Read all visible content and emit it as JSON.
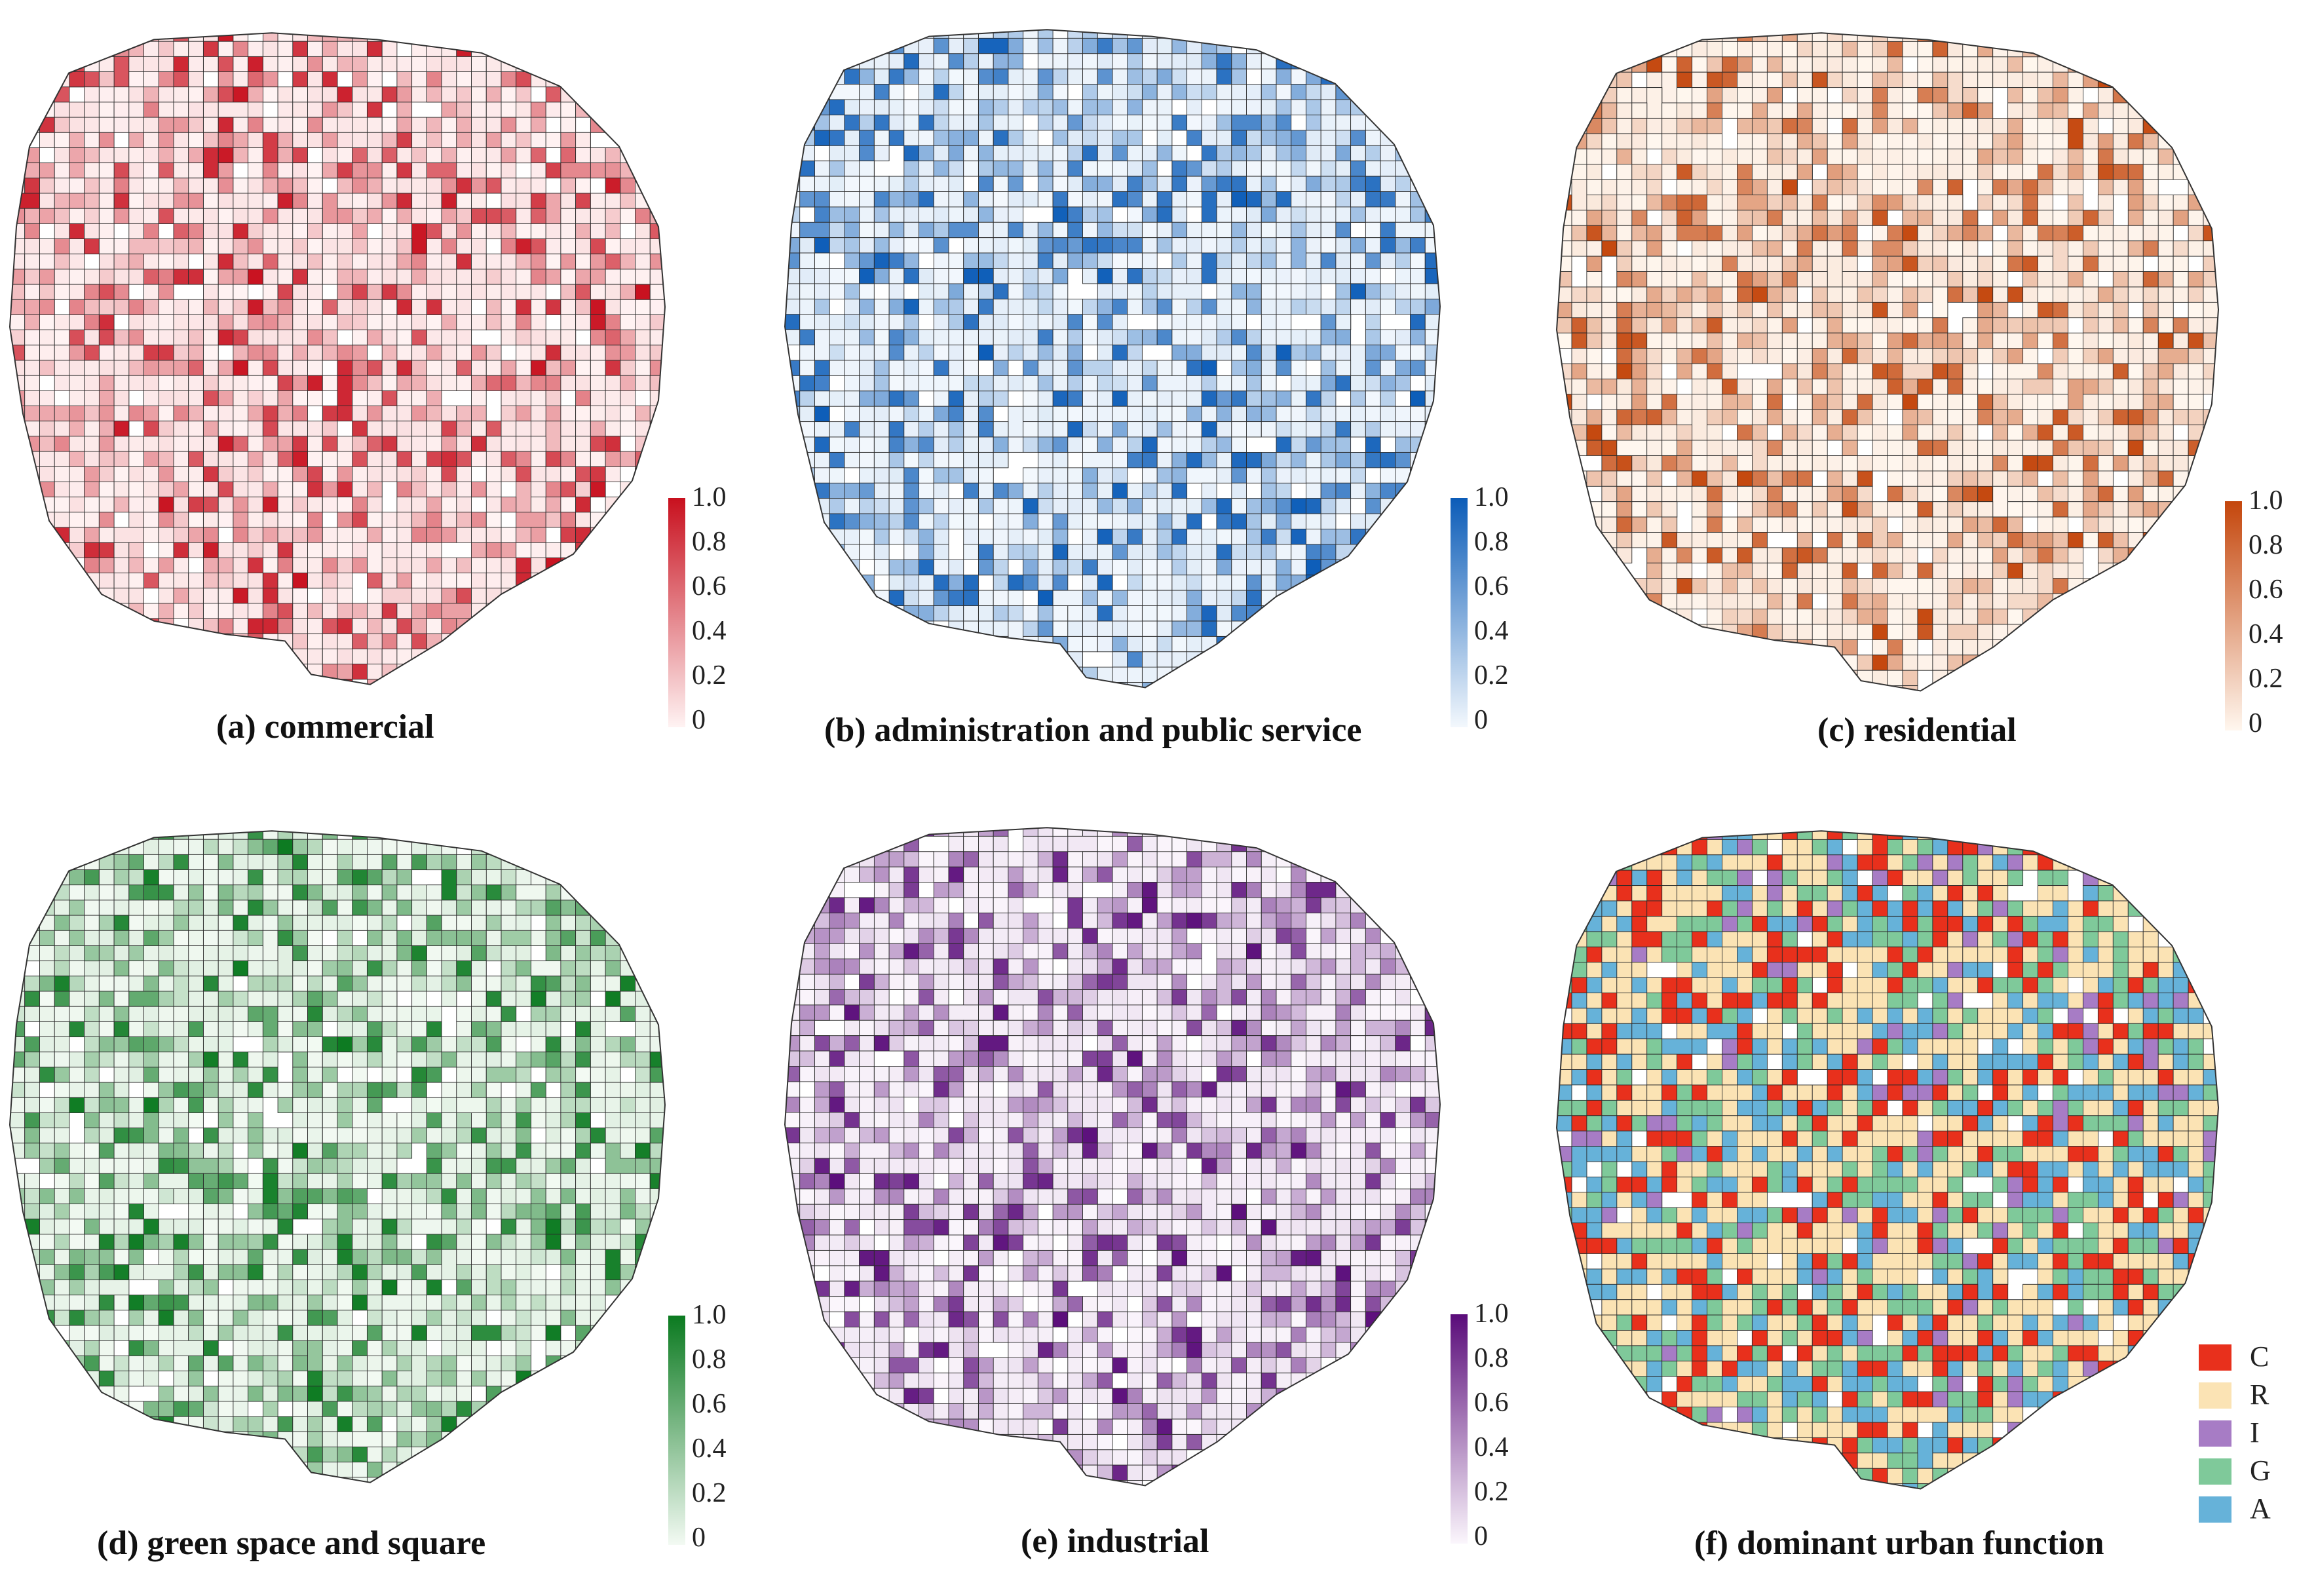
{
  "panels": [
    {
      "id": "a",
      "caption": "(a) commercial",
      "color_high": "#c8101e",
      "color_low": "#fff3f3",
      "ticks": [
        "1.0",
        "0.8",
        "0.6",
        "0.4",
        "0.2",
        "0"
      ]
    },
    {
      "id": "b",
      "caption": "(b) administration and public service",
      "color_high": "#0b5cb8",
      "color_low": "#f3f8fd",
      "ticks": [
        "1.0",
        "0.8",
        "0.6",
        "0.4",
        "0.2",
        "0"
      ]
    },
    {
      "id": "c",
      "caption": "(c) residential",
      "color_high": "#c4460c",
      "color_low": "#fff7ef",
      "ticks": [
        "1.0",
        "0.8",
        "0.6",
        "0.4",
        "0.2",
        "0"
      ]
    },
    {
      "id": "d",
      "caption": "(d) green space and square",
      "color_high": "#0b7a20",
      "color_low": "#f3faf3",
      "ticks": [
        "1.0",
        "0.8",
        "0.6",
        "0.4",
        "0.2",
        "0"
      ]
    },
    {
      "id": "e",
      "caption": "(e) industrial",
      "color_high": "#5a0c7a",
      "color_low": "#fbf6fc",
      "ticks": [
        "1.0",
        "0.8",
        "0.6",
        "0.4",
        "0.2",
        "0"
      ]
    },
    {
      "id": "f",
      "caption": "(f) dominant urban function",
      "categories": [
        {
          "label": "C",
          "color": "#e8301c"
        },
        {
          "label": "R",
          "color": "#fbe3b4"
        },
        {
          "label": "I",
          "color": "#a77cc5"
        },
        {
          "label": "G",
          "color": "#7fc99a"
        },
        {
          "label": "A",
          "color": "#66b2d9"
        }
      ]
    }
  ]
}
